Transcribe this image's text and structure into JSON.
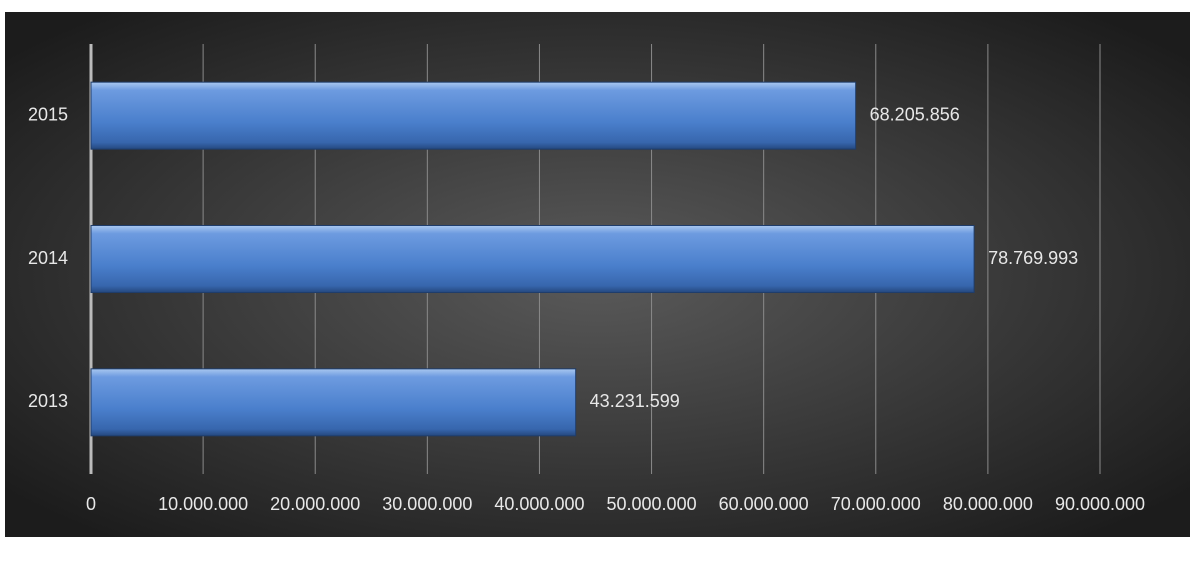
{
  "chart_data": {
    "type": "bar",
    "orientation": "horizontal",
    "categories": [
      "2013",
      "2014",
      "2015"
    ],
    "values": [
      43231599,
      78769993,
      68205856
    ],
    "value_labels": [
      "43.231.599",
      "78.769.993",
      "68.205.856"
    ],
    "color": "#4f81bd",
    "xlim": [
      0,
      90000000
    ],
    "xticks": [
      0,
      {
        "value": 10000000,
        "label": "10.000.000"
      },
      {
        "value": 20000000,
        "label": "20.000.000"
      },
      {
        "value": 30000000,
        "label": "30.000.000"
      },
      {
        "value": 40000000,
        "label": "40.000.000"
      },
      {
        "value": 50000000,
        "label": "50.000.000"
      },
      {
        "value": 60000000,
        "label": "60.000.000"
      },
      {
        "value": 70000000,
        "label": "70.000.000"
      },
      {
        "value": 80000000,
        "label": "80.000.000"
      },
      {
        "value": 90000000,
        "label": "90.000.000"
      }
    ],
    "grid": true
  }
}
